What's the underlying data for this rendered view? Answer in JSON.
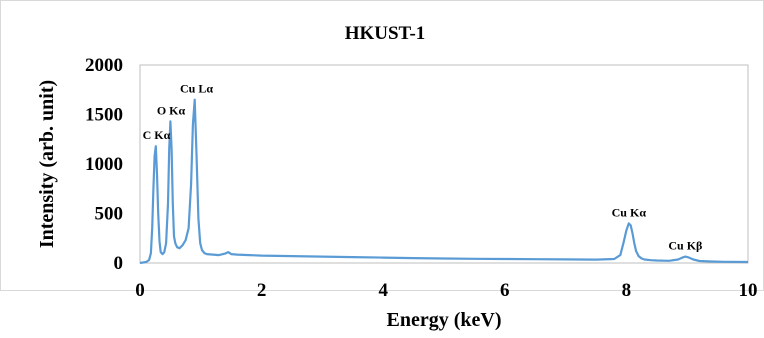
{
  "chart_data": {
    "type": "line",
    "title": "HKUST-1",
    "xlabel": "Energy (keV)",
    "ylabel": "Intensity (arb. unit)",
    "xlim": [
      0,
      10
    ],
    "ylim": [
      0,
      2000
    ],
    "x_ticks": [
      "0",
      "2",
      "4",
      "6",
      "8",
      "10"
    ],
    "y_ticks": [
      "0",
      "500",
      "1000",
      "1500",
      "2000"
    ],
    "grid": false,
    "legend": "none",
    "line_color": "#5b9bd5",
    "series": [
      {
        "x": [
          0.0,
          0.05,
          0.1,
          0.15,
          0.18,
          0.2,
          0.22,
          0.24,
          0.26,
          0.28,
          0.3,
          0.32,
          0.34,
          0.37,
          0.4,
          0.43,
          0.46,
          0.48,
          0.5,
          0.52,
          0.54,
          0.56,
          0.58,
          0.61,
          0.65,
          0.7,
          0.75,
          0.8,
          0.84,
          0.87,
          0.9,
          0.93,
          0.96,
          0.99,
          1.02,
          1.06,
          1.1,
          1.2,
          1.3,
          1.4,
          1.45,
          1.5,
          1.6,
          1.8,
          2.0,
          2.5,
          3.0,
          3.5,
          4.0,
          4.5,
          5.0,
          5.5,
          6.0,
          6.5,
          7.0,
          7.5,
          7.8,
          7.9,
          7.95,
          8.0,
          8.04,
          8.07,
          8.1,
          8.13,
          8.16,
          8.2,
          8.25,
          8.3,
          8.4,
          8.5,
          8.7,
          8.85,
          8.92,
          8.97,
          9.03,
          9.1,
          9.2,
          9.4,
          9.6,
          10.0
        ],
        "y": [
          0,
          5,
          10,
          30,
          100,
          350,
          750,
          1080,
          1180,
          900,
          500,
          220,
          110,
          90,
          110,
          200,
          600,
          1150,
          1430,
          1150,
          600,
          270,
          200,
          160,
          150,
          180,
          230,
          350,
          800,
          1400,
          1650,
          1100,
          450,
          200,
          130,
          100,
          90,
          85,
          80,
          95,
          110,
          90,
          85,
          80,
          75,
          70,
          65,
          60,
          55,
          50,
          45,
          42,
          40,
          38,
          36,
          34,
          40,
          80,
          200,
          330,
          400,
          380,
          300,
          200,
          120,
          70,
          45,
          35,
          28,
          25,
          22,
          35,
          55,
          65,
          55,
          35,
          20,
          15,
          12,
          10
        ]
      }
    ],
    "annotations": [
      {
        "text": "C Kα",
        "x": 0.27,
        "y": 1180
      },
      {
        "text": "O Kα",
        "x": 0.51,
        "y": 1430
      },
      {
        "text": "Cu Lα",
        "x": 0.93,
        "y": 1650
      },
      {
        "text": "Cu Kα",
        "x": 8.04,
        "y": 400
      },
      {
        "text": "Cu Kβ",
        "x": 8.97,
        "y": 65
      }
    ]
  }
}
